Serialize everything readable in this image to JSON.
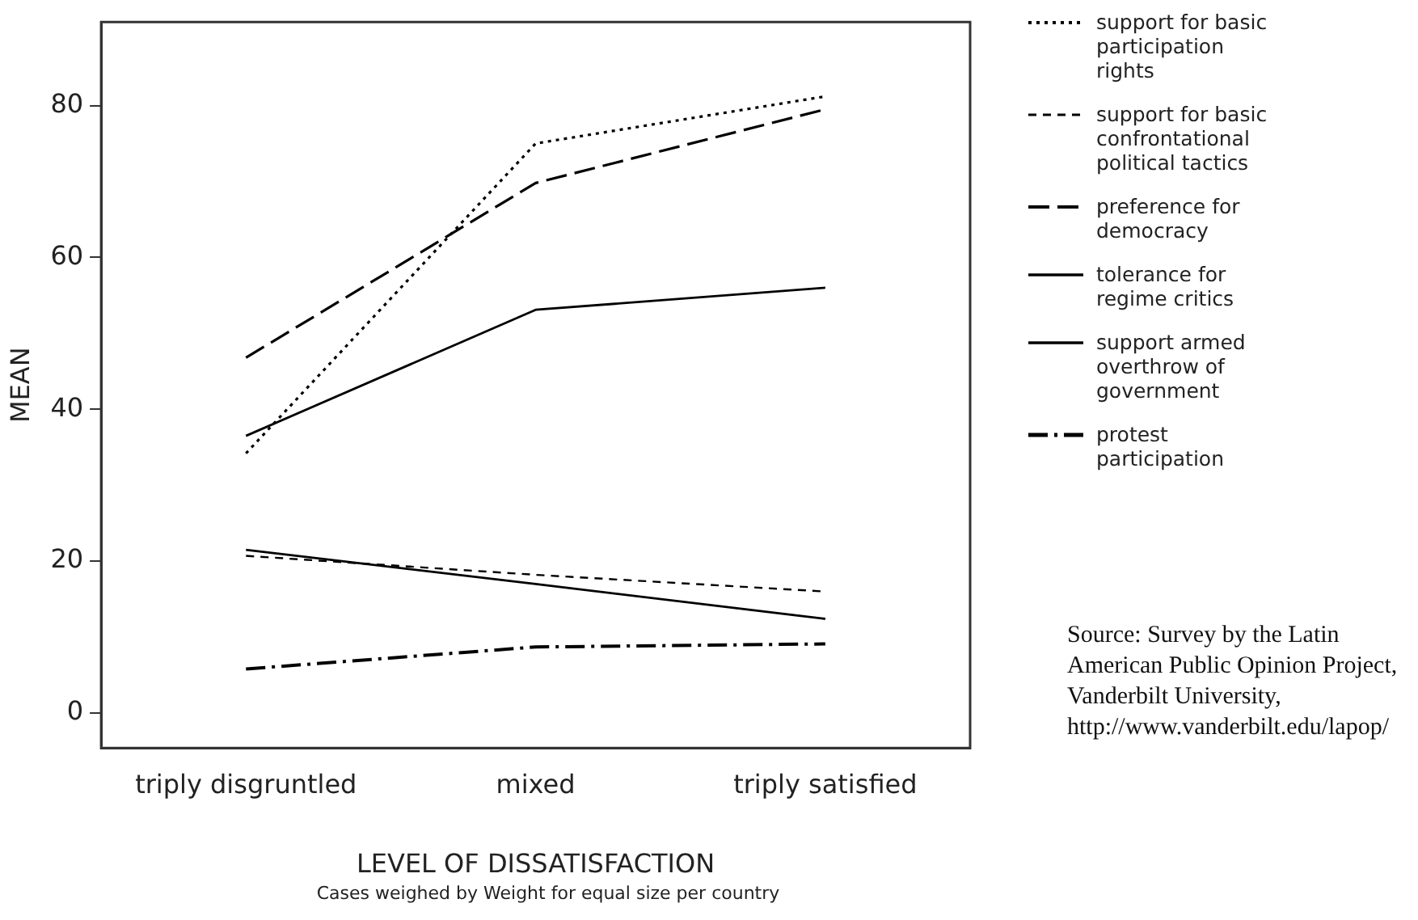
{
  "chart_data": {
    "type": "line",
    "xlabel": "LEVEL OF DISSATISFACTION",
    "ylabel": "MEAN",
    "categories": [
      "triply disgruntled",
      "mixed",
      "triply satisfied"
    ],
    "ylim": [
      -4.6,
      91
    ],
    "yticks": [
      0,
      20,
      40,
      60,
      80
    ],
    "grid": false,
    "legend": "right",
    "marker": "none",
    "series": [
      {
        "name": "support for basic participation rights",
        "color": "#000000",
        "line_style": "dotted",
        "values": [
          34.2,
          75.0,
          81.2
        ]
      },
      {
        "name": "support for basic confrontational political tactics",
        "color": "#000000",
        "line_style": "dashed",
        "values": [
          20.7,
          18.2,
          16.0
        ]
      },
      {
        "name": "preference for democracy",
        "color": "#000000",
        "line_style": "longdash",
        "values": [
          46.8,
          69.8,
          79.5
        ]
      },
      {
        "name": "tolerance for regime critics",
        "color": "#000000",
        "line_style": "solid",
        "values": [
          36.5,
          53.1,
          56.0
        ]
      },
      {
        "name": "support armed overthrow of government",
        "color": "#000000",
        "line_style": "solid",
        "values": [
          21.5,
          17.0,
          12.4
        ]
      },
      {
        "name": "protest participation",
        "color": "#000000",
        "line_style": "dashdot",
        "values": [
          5.8,
          8.7,
          9.1
        ]
      }
    ],
    "annotations": [
      "Cases weighed by Weight for equal size per country",
      "Source: Survey by the Latin American Public Opinion Project, Vanderbilt University, http://www.vanderbilt.edu/lapop/"
    ]
  }
}
